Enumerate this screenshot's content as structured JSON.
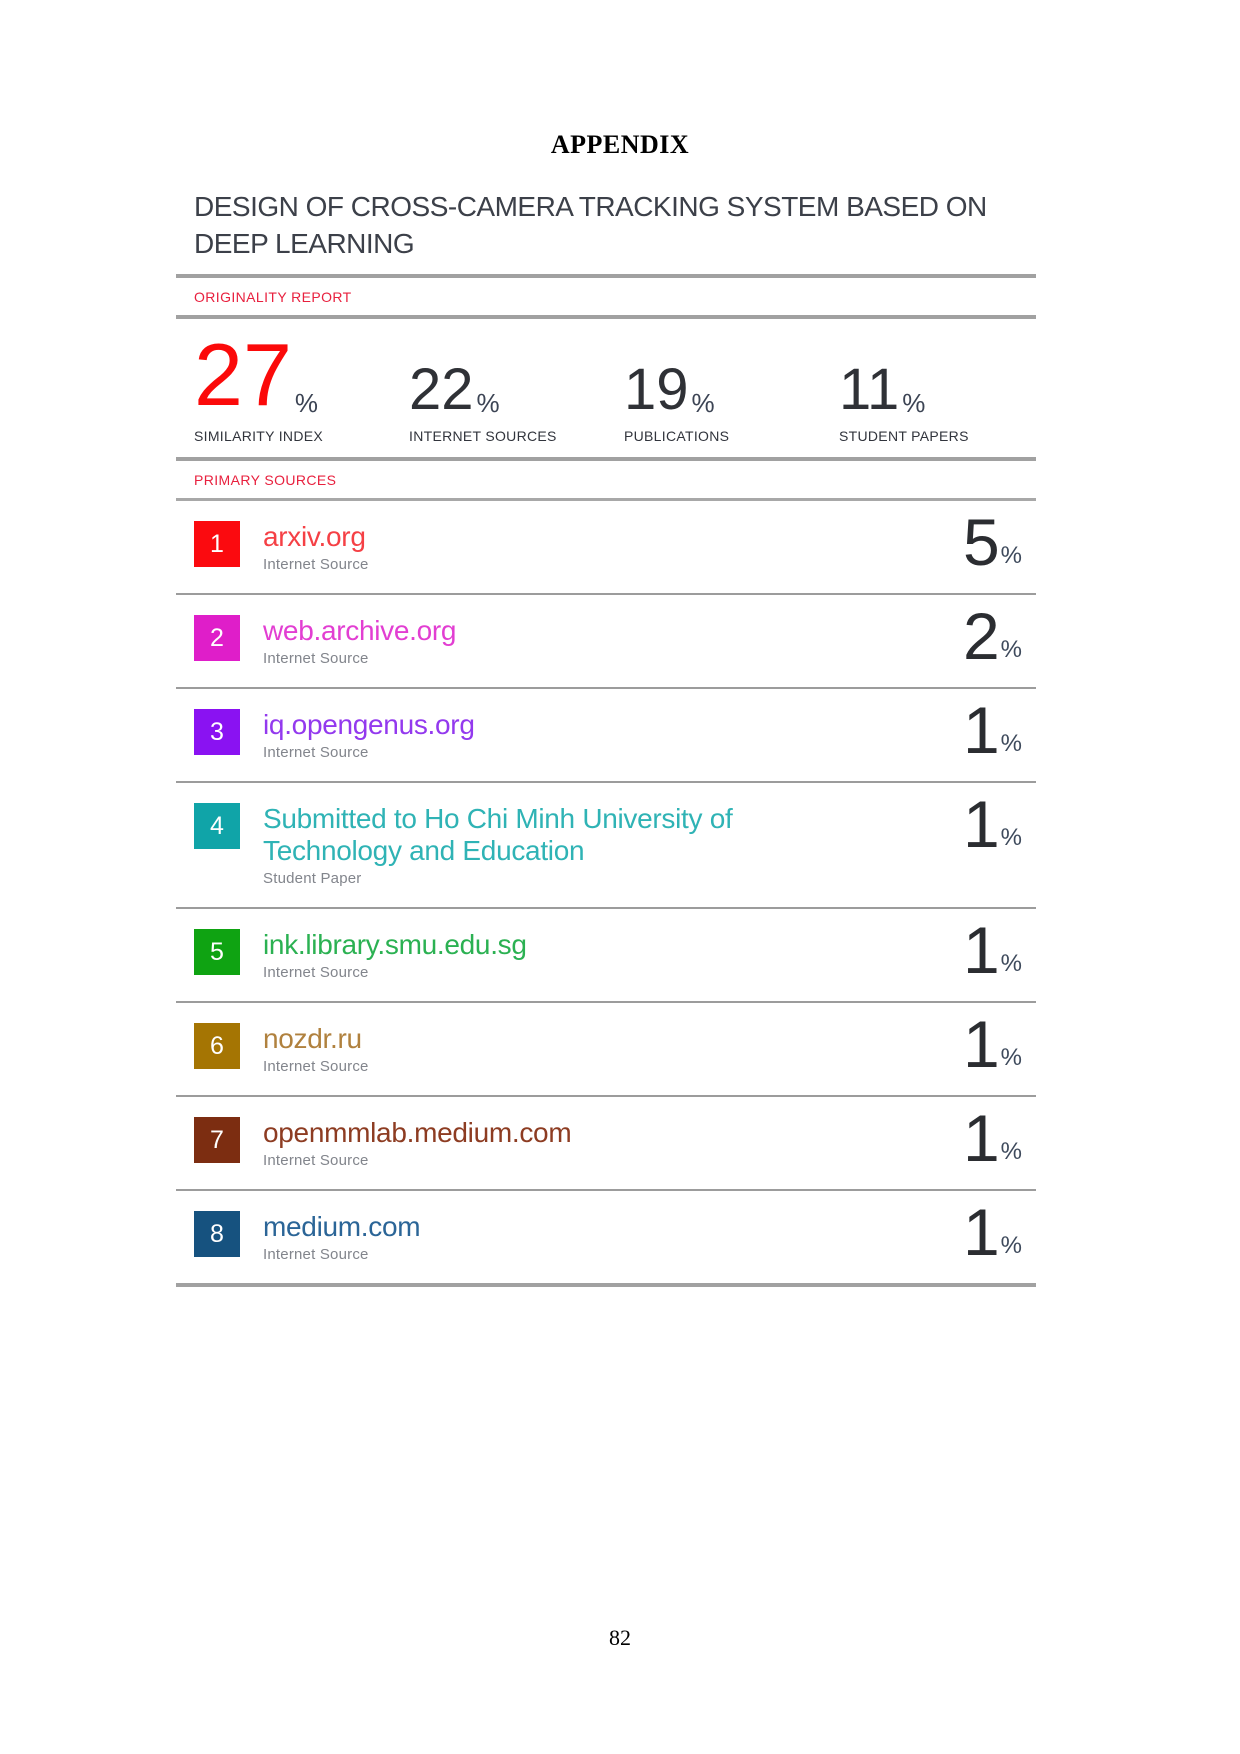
{
  "page": {
    "appendix_label": "APPENDIX",
    "page_number": "82"
  },
  "report": {
    "document_title": "DESIGN OF CROSS-CAMERA TRACKING SYSTEM BASED ON DEEP LEARNING",
    "section_originality": "ORIGINALITY REPORT",
    "section_primary_sources": "PRIMARY SOURCES",
    "accent_red": "#e8203e",
    "stats": [
      {
        "value": "27",
        "unit": "%",
        "label": "SIMILARITY INDEX",
        "highlight": true
      },
      {
        "value": "22",
        "unit": "%",
        "label": "INTERNET SOURCES",
        "highlight": false
      },
      {
        "value": "19",
        "unit": "%",
        "label": "PUBLICATIONS",
        "highlight": false
      },
      {
        "value": "11",
        "unit": "%",
        "label": "STUDENT PAPERS",
        "highlight": false
      }
    ],
    "sources": [
      {
        "index": "1",
        "name": "arxiv.org",
        "type": "Internet Source",
        "percent": "5",
        "unit": "%",
        "badge_color": "#fb0a0f",
        "name_color": "#f54045"
      },
      {
        "index": "2",
        "name": "web.archive.org",
        "type": "Internet Source",
        "percent": "2",
        "unit": "%",
        "badge_color": "#df1ec9",
        "name_color": "#e23ed2"
      },
      {
        "index": "3",
        "name": "iq.opengenus.org",
        "type": "Internet Source",
        "percent": "1",
        "unit": "%",
        "badge_color": "#8a12f2",
        "name_color": "#9339ee"
      },
      {
        "index": "4",
        "name": "Submitted to Ho Chi Minh University of Technology and Education",
        "type": "Student Paper",
        "percent": "1",
        "unit": "%",
        "badge_color": "#10a4a8",
        "name_color": "#2fb3b5"
      },
      {
        "index": "5",
        "name": "ink.library.smu.edu.sg",
        "type": "Internet Source",
        "percent": "1",
        "unit": "%",
        "badge_color": "#0fa312",
        "name_color": "#2bb152"
      },
      {
        "index": "6",
        "name": "nozdr.ru",
        "type": "Internet Source",
        "percent": "1",
        "unit": "%",
        "badge_color": "#a57503",
        "name_color": "#b0813e"
      },
      {
        "index": "7",
        "name": "openmmlab.medium.com",
        "type": "Internet Source",
        "percent": "1",
        "unit": "%",
        "badge_color": "#7c2d11",
        "name_color": "#8d3c22"
      },
      {
        "index": "8",
        "name": "medium.com",
        "type": "Internet Source",
        "percent": "1",
        "unit": "%",
        "badge_color": "#16527f",
        "name_color": "#2b6597"
      }
    ]
  }
}
